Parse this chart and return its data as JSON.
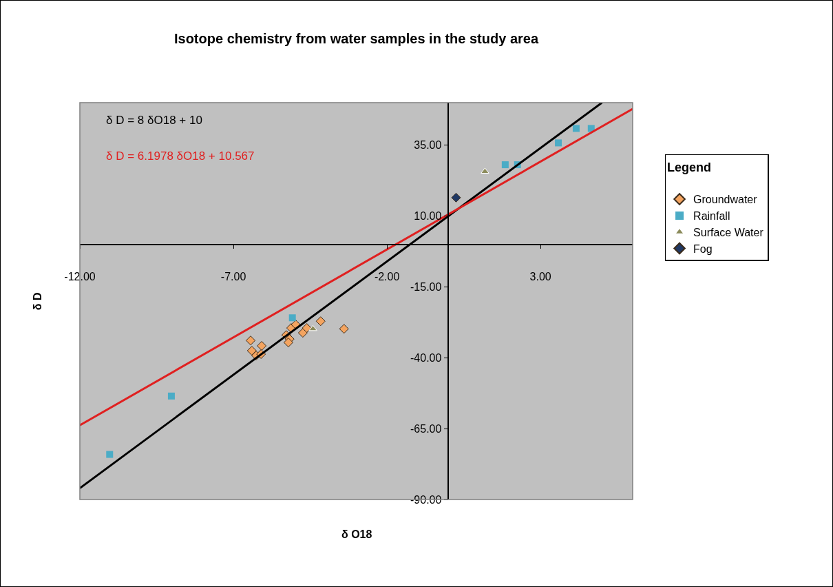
{
  "chart_data": {
    "type": "scatter",
    "title": "Isotope chemistry from water samples in the study area",
    "xlabel": "δ O18",
    "ylabel": "δ D",
    "legend_title": "Legend",
    "legend": "right",
    "grid": false,
    "xlim": [
      -12,
      6
    ],
    "xticks": [
      {
        "value": -12,
        "label": "-12.00"
      },
      {
        "value": -7,
        "label": "-7.00"
      },
      {
        "value": -2,
        "label": "-2.00"
      },
      {
        "value": 3,
        "label": "3.00"
      }
    ],
    "ylim": [
      -90,
      50
    ],
    "yticks": [
      {
        "value": -90,
        "label": "-90.00"
      },
      {
        "value": -65,
        "label": "-65.00"
      },
      {
        "value": -40,
        "label": "-40.00"
      },
      {
        "value": -15,
        "label": "-15.00"
      },
      {
        "value": 10,
        "label": "10.00"
      },
      {
        "value": 35,
        "label": "35.00"
      }
    ],
    "annotations": [
      "δ D = 8 δO18 + 10",
      "δ D = 6.1978 δO18 + 10.567"
    ],
    "series": [
      {
        "name": "Groundwater",
        "color": "#f4a460",
        "marker": "diamond",
        "x": [
          -6.44,
          -6.4,
          -6.26,
          -6.08,
          -6.1,
          -5.28,
          -5.12,
          -4.97,
          -5.17,
          -5.21,
          -4.74,
          -4.61,
          -4.16,
          -3.4
        ],
        "values": [
          -33.9,
          -37.5,
          -39.2,
          -35.8,
          -38.7,
          -32.0,
          -29.5,
          -28.3,
          -33.4,
          -34.6,
          -31.2,
          -29.5,
          -27.1,
          -29.8
        ]
      },
      {
        "name": "Rainfall",
        "color": "#4bacc6",
        "marker": "square",
        "x": [
          -11.03,
          -9.02,
          -5.08,
          1.85,
          2.25,
          3.58,
          4.16,
          4.65
        ],
        "values": [
          -74.1,
          -53.5,
          -25.9,
          28.1,
          28.1,
          35.8,
          40.9,
          40.9
        ]
      },
      {
        "name": "Surface Water",
        "color": "#8b8b5a",
        "marker": "triangle",
        "x": [
          1.19,
          -4.41
        ],
        "values": [
          25.7,
          -29.8
        ]
      },
      {
        "name": "Fog",
        "color": "#1f3864",
        "marker": "diamond",
        "x": [
          0.25
        ],
        "values": [
          16.5
        ]
      },
      {
        "type": "line",
        "color": "#000000",
        "marker": "none",
        "line_style": "solid",
        "x": [
          -12,
          5
        ],
        "values": [
          -86,
          50
        ]
      },
      {
        "type": "line",
        "color": "#e02020",
        "marker": "none",
        "line_style": "solid",
        "x": [
          -12,
          6
        ],
        "values": [
          -63.8,
          47.8
        ]
      }
    ]
  }
}
